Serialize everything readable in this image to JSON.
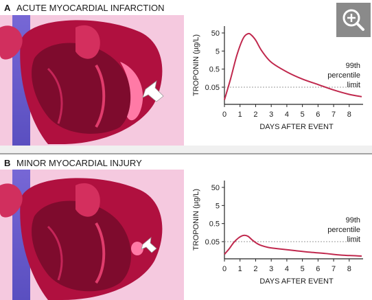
{
  "colors": {
    "curve": "#c0284d",
    "threshold": "#9a9a9a",
    "axis": "#222222",
    "heart_bg": "#f7d6e6"
  },
  "icons": {
    "zoom": "zoom-in-icon"
  },
  "panels": [
    {
      "letter": "A",
      "title": "ACUTE MYOCARDIAL INFARCTION"
    },
    {
      "letter": "B",
      "title": "MINOR MYOCARDIAL INJURY"
    }
  ],
  "chart_data": [
    {
      "type": "line",
      "title": "ACUTE MYOCARDIAL INFARCTION",
      "xlabel": "DAYS AFTER EVENT",
      "ylabel": "TROPONIN (µg/L)",
      "x_ticks": [
        "0",
        "1",
        "2",
        "3",
        "4",
        "5",
        "6",
        "7",
        "8"
      ],
      "y_ticks": [
        "0.05",
        "0.5",
        "5",
        "50"
      ],
      "y_scale": "log",
      "xlim": [
        0,
        8.8
      ],
      "ylim": [
        0.005,
        100
      ],
      "series": [
        {
          "x": [
            0,
            0.4,
            0.8,
            1.2,
            1.5,
            1.7,
            2.0,
            2.4,
            3.0,
            4.0,
            5.0,
            6.0,
            7.0,
            8.0,
            8.8
          ],
          "y": [
            0.01,
            0.15,
            3,
            25,
            45,
            40,
            20,
            5,
            1.2,
            0.35,
            0.14,
            0.07,
            0.035,
            0.02,
            0.015
          ]
        }
      ],
      "reference_line": {
        "y": 0.05,
        "label": [
          "99th",
          "percentile",
          "limit"
        ]
      },
      "grid": false
    },
    {
      "type": "line",
      "title": "MINOR MYOCARDIAL INJURY",
      "xlabel": "DAYS AFTER EVENT",
      "ylabel": "TROPONIN (µg/L)",
      "x_ticks": [
        "0",
        "1",
        "2",
        "3",
        "4",
        "5",
        "6",
        "7",
        "8"
      ],
      "y_ticks": [
        "0.05",
        "0.5",
        "5",
        "50"
      ],
      "y_scale": "log",
      "xlim": [
        0,
        8.8
      ],
      "ylim": [
        0.005,
        100
      ],
      "series": [
        {
          "x": [
            0,
            0.3,
            0.6,
            0.9,
            1.2,
            1.5,
            1.8,
            2.2,
            2.8,
            3.5,
            4.5,
            5.5,
            6.5,
            7.5,
            8.8
          ],
          "y": [
            0.01,
            0.02,
            0.045,
            0.08,
            0.11,
            0.1,
            0.06,
            0.035,
            0.024,
            0.02,
            0.016,
            0.013,
            0.011,
            0.009,
            0.008
          ]
        }
      ],
      "reference_line": {
        "y": 0.05,
        "label": [
          "99th",
          "percentile",
          "limit"
        ]
      },
      "grid": false
    }
  ]
}
